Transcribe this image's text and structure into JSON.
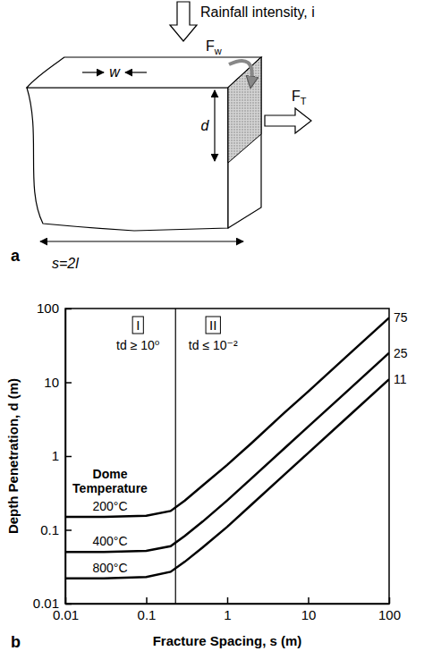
{
  "diagram": {
    "panel_label": "a",
    "rainfall_label": "Rainfall intensity, i",
    "width_label": "w",
    "depth_label": "d",
    "water_force": {
      "main": "F",
      "sub": "w"
    },
    "thermal_force": {
      "main": "F",
      "sub": "T"
    },
    "spacing_label": "s=2l"
  },
  "chart_data": {
    "type": "line",
    "panel_label": "b",
    "x_label": "Fracture Spacing, s (m)",
    "y_label": "Depth Penetration, d (m)",
    "log": true,
    "grid": false,
    "xlim": [
      0.01,
      100
    ],
    "ylim": [
      0.01,
      100
    ],
    "xticks": [
      0.01,
      0.1,
      1,
      10,
      100
    ],
    "yticks": [
      0.01,
      0.1,
      1,
      10,
      100
    ],
    "x": [
      0.01,
      0.03,
      0.1,
      0.2,
      0.3,
      0.5,
      1,
      2,
      5,
      10,
      30,
      100
    ],
    "legend_title": "Dome Temperature",
    "series": [
      {
        "name": "200°C",
        "color": "#000000",
        "line_style": "solid",
        "values": [
          0.15,
          0.15,
          0.155,
          0.18,
          0.25,
          0.4,
          0.76,
          1.5,
          3.8,
          7.5,
          22.5,
          75
        ],
        "end_label": 75
      },
      {
        "name": "400°C",
        "color": "#000000",
        "line_style": "solid",
        "values": [
          0.05,
          0.05,
          0.052,
          0.06,
          0.083,
          0.13,
          0.25,
          0.5,
          1.25,
          2.5,
          7.5,
          25
        ],
        "end_label": 25
      },
      {
        "name": "800°C",
        "color": "#000000",
        "line_style": "solid",
        "values": [
          0.022,
          0.022,
          0.023,
          0.027,
          0.037,
          0.058,
          0.11,
          0.22,
          0.55,
          1.1,
          3.3,
          11
        ],
        "end_label": 11
      }
    ],
    "regime_boundary": 0.23,
    "regimes": [
      {
        "label": "I",
        "condition": "td ≥ 10⁰"
      },
      {
        "label": "II",
        "condition": "td ≤ 10⁻²"
      }
    ]
  }
}
